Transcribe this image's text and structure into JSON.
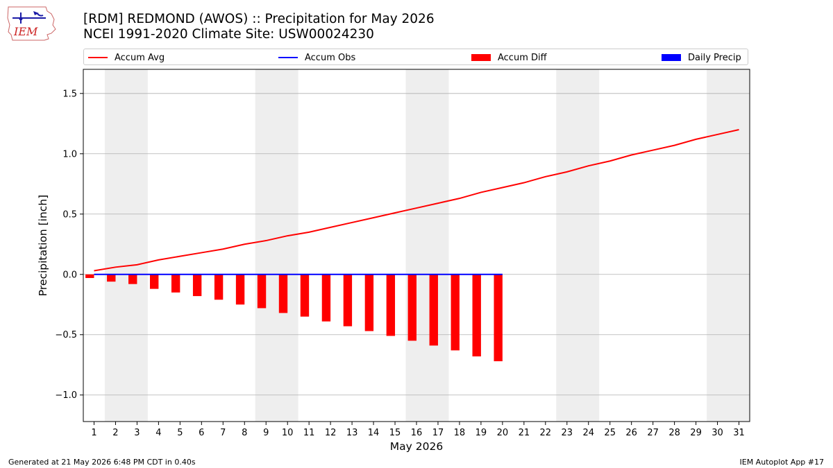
{
  "header": {
    "title_line1": "[RDM] REDMOND (AWOS) :: Precipitation for May 2026",
    "title_line2": "NCEI 1991-2020 Climate Site: USW00024230",
    "logo_text": "IEM"
  },
  "footer": {
    "left": "Generated at 21 May 2026 6:48 PM CDT in 0.40s",
    "right": "IEM Autoplot App #17"
  },
  "colors": {
    "avg": "#ff0000",
    "obs": "#0000ff",
    "diff": "#ff0000",
    "daily": "#0000ff",
    "weekend_shade": "#eeeeee",
    "grid": "#b0b0b0"
  },
  "chart_data": {
    "type": "bar",
    "xlabel": "May 2026",
    "ylabel": "Precipitation [inch]",
    "xlim": [
      0.5,
      31.5
    ],
    "ylim": [
      -1.22,
      1.7
    ],
    "yticks": [
      -1.0,
      -0.5,
      0.0,
      0.5,
      1.0,
      1.5
    ],
    "ytick_labels": [
      "−1.0",
      "−0.5",
      "0.0",
      "0.5",
      "1.0",
      "1.5"
    ],
    "grid": "y",
    "legend_position": "top, above plot",
    "weekend_shading": [
      [
        1.5,
        3.5
      ],
      [
        8.5,
        10.5
      ],
      [
        15.5,
        17.5
      ],
      [
        22.5,
        24.5
      ],
      [
        29.5,
        31.5
      ]
    ],
    "days": [
      1,
      2,
      3,
      4,
      5,
      6,
      7,
      8,
      9,
      10,
      11,
      12,
      13,
      14,
      15,
      16,
      17,
      18,
      19,
      20,
      21,
      22,
      23,
      24,
      25,
      26,
      27,
      28,
      29,
      30,
      31
    ],
    "series": [
      {
        "name": "Accum Avg",
        "kind": "line",
        "values": [
          0.03,
          0.06,
          0.08,
          0.12,
          0.15,
          0.18,
          0.21,
          0.25,
          0.28,
          0.32,
          0.35,
          0.39,
          0.43,
          0.47,
          0.51,
          0.55,
          0.59,
          0.63,
          0.68,
          0.72,
          0.76,
          0.81,
          0.85,
          0.9,
          0.94,
          0.99,
          1.03,
          1.07,
          1.12,
          1.16,
          1.2
        ]
      },
      {
        "name": "Accum Obs",
        "kind": "line",
        "values": [
          0,
          0,
          0,
          0,
          0,
          0,
          0,
          0,
          0,
          0,
          0,
          0,
          0,
          0,
          0,
          0,
          0,
          0,
          0,
          0
        ]
      },
      {
        "name": "Accum Diff",
        "kind": "bar",
        "values": [
          -0.03,
          -0.06,
          -0.08,
          -0.12,
          -0.15,
          -0.18,
          -0.21,
          -0.25,
          -0.28,
          -0.32,
          -0.35,
          -0.39,
          -0.43,
          -0.47,
          -0.51,
          -0.55,
          -0.59,
          -0.63,
          -0.68,
          -0.72
        ]
      },
      {
        "name": "Daily Precip",
        "kind": "bar",
        "values": [
          0,
          0,
          0,
          0,
          0,
          0,
          0,
          0,
          0,
          0,
          0,
          0,
          0,
          0,
          0,
          0,
          0,
          0,
          0,
          0
        ]
      }
    ]
  }
}
